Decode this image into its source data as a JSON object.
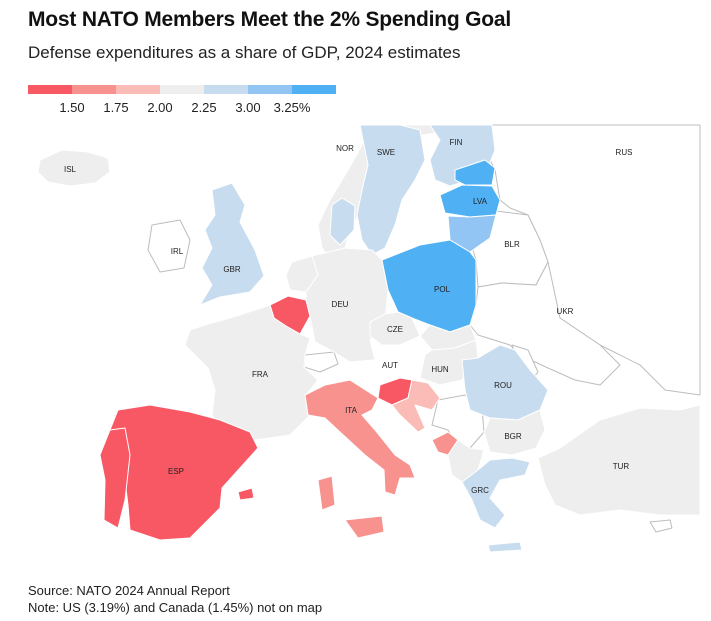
{
  "title": "Most NATO Members Meet the 2% Spending Goal",
  "subtitle": "Defense expenditures as a share of GDP, 2024 estimates",
  "legend": {
    "colors": [
      "#f75864",
      "#f8928f",
      "#fbbcb7",
      "#eeeeee",
      "#c8dcf0",
      "#92c5f3",
      "#4fb0f4"
    ],
    "ticks": [
      "1.50",
      "1.75",
      "2.00",
      "2.25",
      "3.00",
      "3.25%"
    ]
  },
  "colors": {
    "non_nato": "#ffffff",
    "non_nato_stroke": "#bdbdbd",
    "below_1_5": "#f75864",
    "r_1_5_1_75": "#f8928f",
    "r_1_75_2": "#fbbcb7",
    "r_2_2_25": "#eeeeee",
    "r_2_25_3": "#c8dcf0",
    "r_3_3_25": "#92c5f3",
    "above_3_25": "#4fb0f4"
  },
  "labels": {
    "isl": "ISL",
    "nor": "NOR",
    "swe": "SWE",
    "fin": "FIN",
    "rus": "RUS",
    "irl": "IRL",
    "gbr": "GBR",
    "lva": "LVA",
    "blr": "BLR",
    "deu": "DEU",
    "pol": "POL",
    "ukr": "UKR",
    "cze": "CZE",
    "fra": "FRA",
    "aut": "AUT",
    "hun": "HUN",
    "rou": "ROU",
    "ita": "ITA",
    "bgr": "BGR",
    "esp": "ESP",
    "tur": "TUR",
    "grc": "GRC"
  },
  "source": "Source: NATO 2024 Annual Report",
  "note": "Note: US (3.19%) and Canada (1.45%) not on map"
}
